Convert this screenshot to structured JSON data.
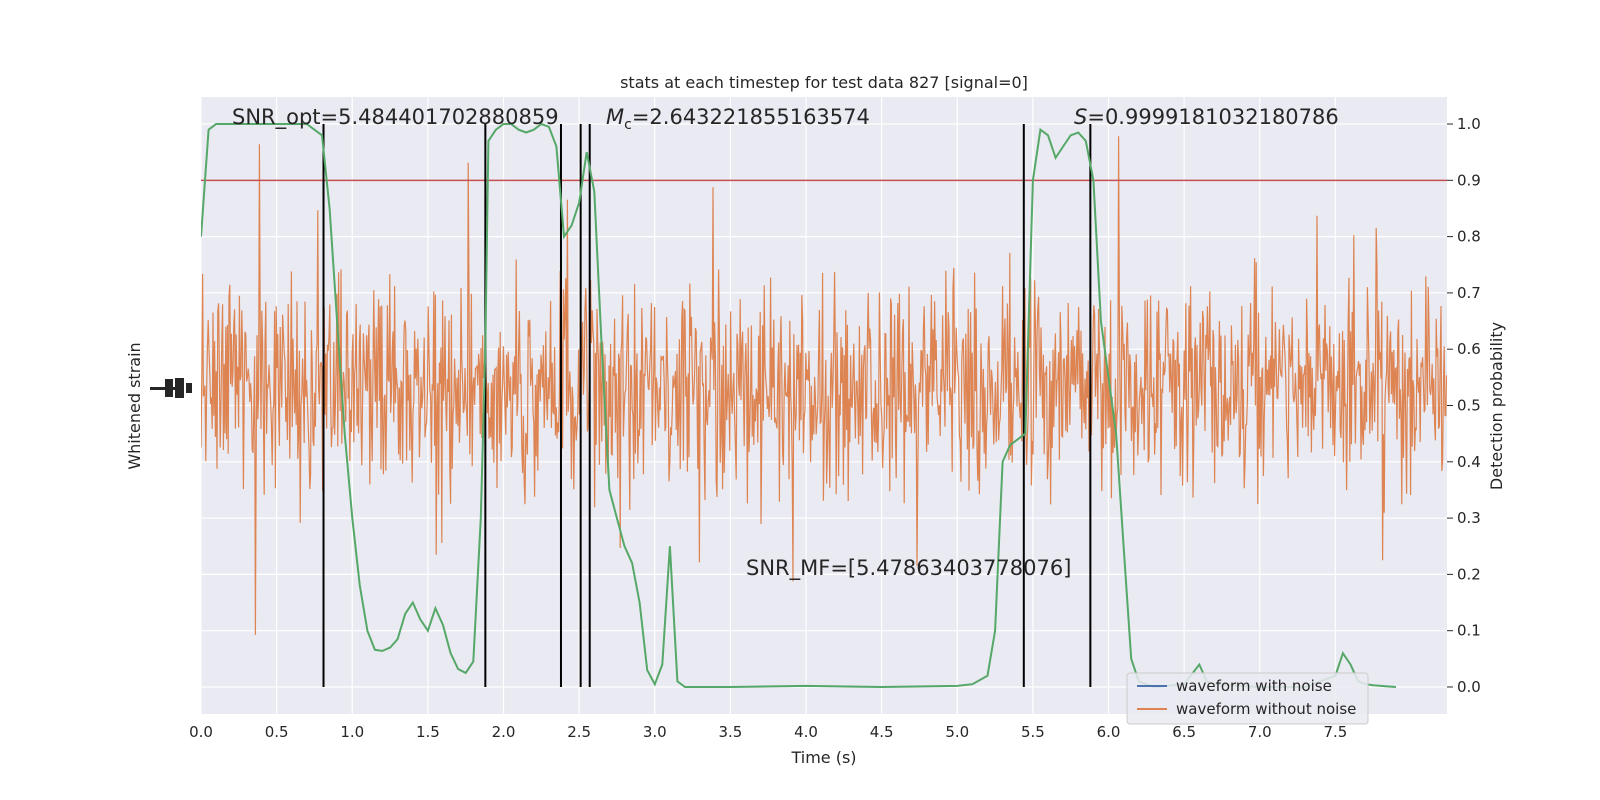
{
  "chart_data": {
    "type": "line",
    "title": "stats at each timestep for test data 827 [signal=0]",
    "xlabel": "Time (s)",
    "ylabel_left": "Whitened strain",
    "ylabel_right": "Detection probability",
    "xlim": [
      0.0,
      8.0
    ],
    "ylim_right": [
      -0.048,
      1.048
    ],
    "xticks": [
      "0.0",
      "0.5",
      "1.0",
      "1.5",
      "2.0",
      "2.5",
      "3.0",
      "3.5",
      "4.0",
      "4.5",
      "5.0",
      "5.5",
      "6.0",
      "6.5",
      "7.0",
      "7.5"
    ],
    "yticks_right": [
      "0.0",
      "0.1",
      "0.2",
      "0.3",
      "0.4",
      "0.5",
      "0.6",
      "0.7",
      "0.8",
      "0.9",
      "1.0"
    ],
    "grid": true,
    "threshold": 0.9,
    "vlines_x": [
      0.81,
      1.88,
      2.38,
      2.51,
      2.57,
      5.44,
      5.88
    ],
    "annotations": {
      "snr_opt": "SNR_opt=5.484401702880859",
      "mc_symbol": "M",
      "mc_subscript": "c",
      "mc_value": "=2.643221855163574",
      "s_symbol": "S",
      "s_value": "=0.9999181032180786",
      "snr_mf": "SNR_MF=[5.47863403778076]"
    },
    "legend": {
      "placement": "lower-right",
      "entries": [
        "waveform with noise",
        "waveform without noise"
      ]
    },
    "colors": {
      "noise_wave": "#dd8452",
      "clean_wave": "#4c72b0",
      "probability": "#55a868",
      "threshold": "#c44e52",
      "vlines": "#000000",
      "axes_bg": "#eaeaf2"
    },
    "probability_series": {
      "name": "",
      "x": [
        0.0,
        0.05,
        0.1,
        0.2,
        0.3,
        0.4,
        0.5,
        0.6,
        0.7,
        0.75,
        0.8,
        0.85,
        0.9,
        0.95,
        1.0,
        1.05,
        1.1,
        1.15,
        1.2,
        1.25,
        1.3,
        1.35,
        1.4,
        1.45,
        1.5,
        1.55,
        1.6,
        1.65,
        1.7,
        1.75,
        1.8,
        1.85,
        1.88,
        1.9,
        1.95,
        2.0,
        2.05,
        2.1,
        2.15,
        2.2,
        2.25,
        2.3,
        2.35,
        2.4,
        2.45,
        2.5,
        2.55,
        2.6,
        2.65,
        2.7,
        2.75,
        2.8,
        2.85,
        2.9,
        2.95,
        3.0,
        3.05,
        3.1,
        3.15,
        3.2,
        3.3,
        3.5,
        4.0,
        4.5,
        5.0,
        5.1,
        5.2,
        5.25,
        5.3,
        5.35,
        5.4,
        5.45,
        5.5,
        5.55,
        5.6,
        5.65,
        5.7,
        5.75,
        5.8,
        5.85,
        5.9,
        5.95,
        6.0,
        6.05,
        6.1,
        6.15,
        6.2,
        6.25,
        6.3,
        6.5,
        6.6,
        6.65,
        6.7,
        7.0,
        7.3,
        7.5,
        7.55,
        7.6,
        7.65,
        7.7,
        7.75,
        7.8,
        7.9
      ],
      "values": [
        0.8,
        0.99,
        1.0,
        1.0,
        1.0,
        1.0,
        1.0,
        1.0,
        1.0,
        0.99,
        0.98,
        0.85,
        0.65,
        0.45,
        0.3,
        0.18,
        0.1,
        0.066,
        0.064,
        0.07,
        0.085,
        0.13,
        0.15,
        0.12,
        0.1,
        0.14,
        0.11,
        0.06,
        0.032,
        0.025,
        0.045,
        0.3,
        0.6,
        0.97,
        0.99,
        1.0,
        1.0,
        0.99,
        0.985,
        0.99,
        1.0,
        0.995,
        0.96,
        0.8,
        0.82,
        0.86,
        0.95,
        0.88,
        0.6,
        0.35,
        0.3,
        0.25,
        0.22,
        0.15,
        0.03,
        0.005,
        0.04,
        0.25,
        0.01,
        0.0,
        0.0,
        0.0,
        0.002,
        0.0,
        0.002,
        0.005,
        0.02,
        0.1,
        0.4,
        0.43,
        0.44,
        0.45,
        0.9,
        0.99,
        0.98,
        0.94,
        0.96,
        0.98,
        0.985,
        0.97,
        0.9,
        0.65,
        0.55,
        0.45,
        0.25,
        0.05,
        0.01,
        0.005,
        0.0,
        0.005,
        0.04,
        0.01,
        0.005,
        0.0,
        0.0,
        0.02,
        0.06,
        0.04,
        0.01,
        0.005,
        0.003,
        0.002,
        0.0
      ]
    }
  }
}
